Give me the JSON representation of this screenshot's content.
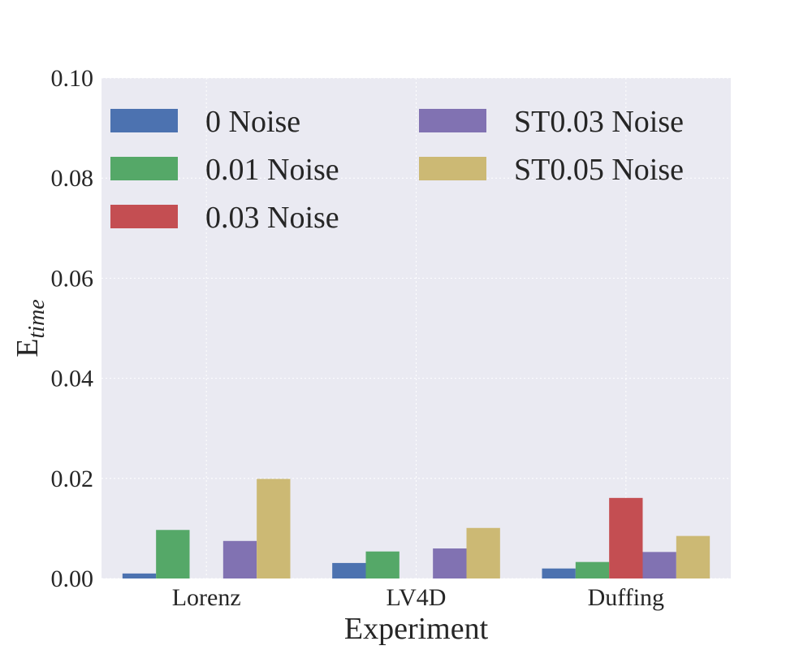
{
  "chart_data": {
    "type": "bar",
    "xlabel": "Experiment",
    "ylabel_main": "E",
    "ylabel_sub": "time",
    "categories": [
      "Lorenz",
      "LV4D",
      "Duffing"
    ],
    "ylim": [
      0,
      0.1
    ],
    "yticks": [
      "0.00",
      "0.02",
      "0.04",
      "0.06",
      "0.08",
      "0.10"
    ],
    "grid": true,
    "legend_placement": "top-left",
    "series": [
      {
        "name": "0 Noise",
        "color": "#4c72b0",
        "values": [
          0.001,
          0.0031,
          0.002
        ]
      },
      {
        "name": "0.01 Noise",
        "color": "#55a868",
        "values": [
          0.0097,
          0.0054,
          0.0033
        ]
      },
      {
        "name": "0.03 Noise",
        "color": "#c44e52",
        "values": [
          0,
          0,
          0.0161
        ]
      },
      {
        "name": "ST0.03 Noise",
        "color": "#8172b2",
        "values": [
          0.0075,
          0.006,
          0.0053
        ]
      },
      {
        "name": "ST0.05 Noise",
        "color": "#ccb974",
        "values": [
          0.0199,
          0.0101,
          0.0085
        ]
      }
    ],
    "plot_background": "#eaeaf2"
  }
}
